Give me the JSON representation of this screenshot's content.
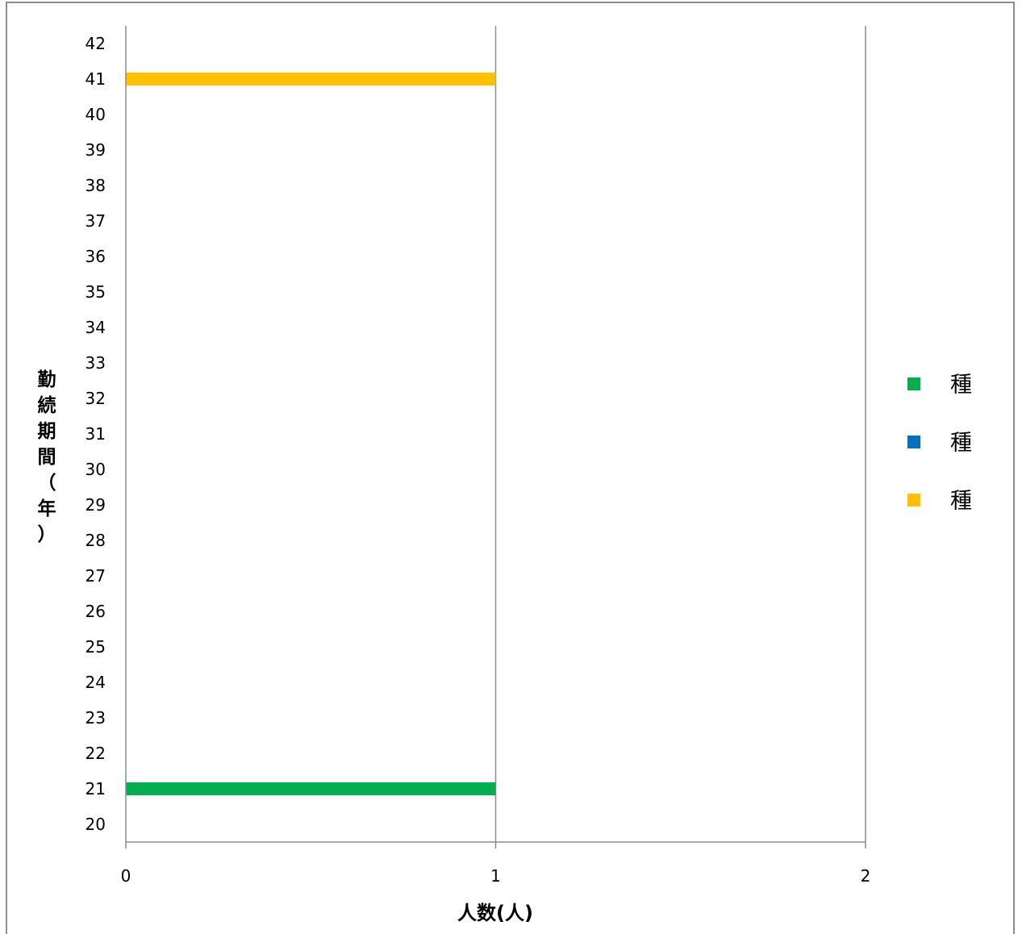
{
  "chart_data": {
    "type": "bar",
    "orientation": "horizontal",
    "stacked": true,
    "categories": [
      "20",
      "21",
      "22",
      "23",
      "24",
      "25",
      "26",
      "27",
      "28",
      "29",
      "30",
      "31",
      "32",
      "33",
      "34",
      "35",
      "36",
      "37",
      "38",
      "39",
      "40",
      "41",
      "42"
    ],
    "series": [
      {
        "name": "種",
        "color": "#00b050",
        "values": [
          0,
          1,
          0,
          0,
          0,
          0,
          0,
          0,
          0,
          0,
          0,
          0,
          0,
          0,
          0,
          0,
          0,
          0,
          0,
          0,
          0,
          0,
          0
        ]
      },
      {
        "name": "種",
        "color": "#0070c0",
        "values": [
          0,
          0,
          0,
          0,
          0,
          0,
          0,
          0,
          0,
          0,
          0,
          0,
          0,
          0,
          0,
          0,
          0,
          0,
          0,
          0,
          0,
          0,
          0
        ]
      },
      {
        "name": "種",
        "color": "#ffc000",
        "values": [
          0,
          0,
          0,
          0,
          0,
          0,
          0,
          0,
          0,
          0,
          0,
          0,
          0,
          0,
          0,
          0,
          0,
          0,
          0,
          0,
          0,
          1,
          0
        ]
      }
    ],
    "xlabel": "人数(人)",
    "ylabel": "勤続期間（年）",
    "xlim": [
      0,
      2
    ],
    "xticks": [
      "0",
      "1",
      "2"
    ],
    "grid": "vertical-major",
    "legend_position": "right"
  }
}
